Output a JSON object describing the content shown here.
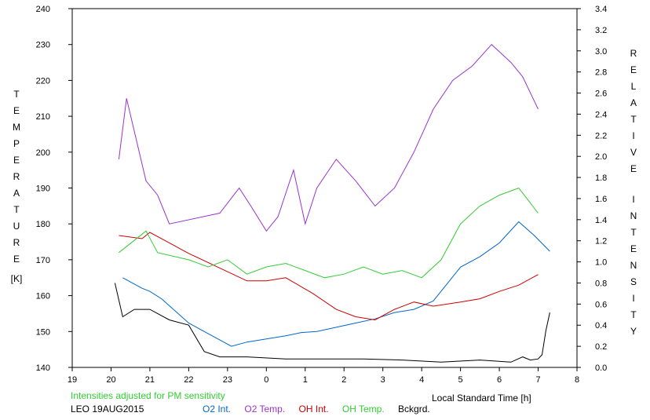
{
  "chart_data": {
    "type": "line",
    "note": "Intensities adjusted for PM sensitivity",
    "site_date": "LEO 19AUG2015",
    "xlabel": "Local Standard Time [h]",
    "ylabel_left": "TEMPERATURE",
    "ylabel_left_unit": "[K]",
    "ylabel_right": "RELATIVE INTENSITY",
    "x_ticks": [
      "19",
      "20",
      "21",
      "22",
      "23",
      "0",
      "1",
      "2",
      "3",
      "4",
      "5",
      "6",
      "7",
      "8"
    ],
    "x_range": [
      19,
      32
    ],
    "y_left_ticks": [
      140,
      150,
      160,
      170,
      180,
      190,
      200,
      210,
      220,
      230,
      240
    ],
    "y_left_range": [
      140,
      240
    ],
    "y_right_ticks": [
      "0.0",
      "0.2",
      "0.4",
      "0.6",
      "0.8",
      "1.0",
      "1.2",
      "1.4",
      "1.6",
      "1.8",
      "2.0",
      "2.2",
      "2.4",
      "2.6",
      "2.8",
      "3.0",
      "3.2",
      "3.4"
    ],
    "y_right_range": [
      0.0,
      3.4
    ],
    "grid": false,
    "legend_position": "bottom",
    "series": [
      {
        "name": "O2 Int.",
        "axis": "right",
        "color": "#0066cc",
        "x": [
          20.3,
          20.8,
          21.0,
          21.3,
          22.0,
          23.1,
          23.5,
          24.0,
          24.5,
          24.9,
          25.3,
          25.8,
          26.3,
          26.8,
          27.3,
          27.8,
          28.3,
          29.0,
          29.5,
          30.0,
          30.5,
          30.9,
          31.3
        ],
        "y": [
          0.85,
          0.75,
          0.72,
          0.65,
          0.42,
          0.2,
          0.24,
          0.27,
          0.3,
          0.33,
          0.34,
          0.38,
          0.42,
          0.46,
          0.52,
          0.55,
          0.63,
          0.95,
          1.05,
          1.18,
          1.38,
          1.25,
          1.1
        ]
      },
      {
        "name": "O2 Temp.",
        "axis": "left",
        "color": "#9933cc",
        "x": [
          20.2,
          20.4,
          20.9,
          21.2,
          21.5,
          22.8,
          23.3,
          23.6,
          24.0,
          24.3,
          24.7,
          25.0,
          25.3,
          25.8,
          26.3,
          26.8,
          27.3,
          27.8,
          28.3,
          28.8,
          29.3,
          29.8,
          30.3,
          30.6,
          31.0
        ],
        "y": [
          198,
          215,
          192,
          188,
          180,
          183,
          190,
          185,
          178,
          182,
          195,
          180,
          190,
          198,
          192,
          185,
          190,
          200,
          212,
          220,
          224,
          230,
          225,
          221,
          212
        ]
      },
      {
        "name": "OH Int.",
        "axis": "right",
        "color": "#cc0000",
        "x": [
          20.2,
          20.8,
          21.0,
          21.4,
          22.0,
          23.5,
          24.0,
          24.5,
          25.2,
          25.8,
          26.3,
          26.8,
          27.3,
          27.8,
          28.3,
          29.0,
          29.5,
          30.0,
          30.5,
          31.0
        ],
        "y": [
          1.25,
          1.22,
          1.28,
          1.2,
          1.08,
          0.82,
          0.82,
          0.85,
          0.7,
          0.55,
          0.48,
          0.45,
          0.55,
          0.62,
          0.58,
          0.62,
          0.65,
          0.72,
          0.78,
          0.88
        ]
      },
      {
        "name": "OH Temp.",
        "axis": "left",
        "color": "#33cc33",
        "x": [
          20.2,
          20.9,
          21.2,
          22.0,
          22.5,
          23.0,
          23.5,
          24.0,
          24.5,
          25.0,
          25.5,
          26.0,
          26.5,
          27.0,
          27.5,
          28.0,
          28.5,
          29.0,
          29.5,
          30.0,
          30.5,
          31.0
        ],
        "y": [
          172,
          178,
          172,
          170,
          168,
          170,
          166,
          168,
          169,
          167,
          165,
          166,
          168,
          166,
          167,
          165,
          170,
          180,
          185,
          188,
          190,
          183
        ]
      },
      {
        "name": "Bckgrd.",
        "axis": "right",
        "color": "#000000",
        "x": [
          20.1,
          20.3,
          20.6,
          21.0,
          21.5,
          22.0,
          22.4,
          22.8,
          23.5,
          24.5,
          25.5,
          26.5,
          27.5,
          28.5,
          29.5,
          30.3,
          30.6,
          30.8,
          31.0,
          31.1,
          31.2,
          31.3
        ],
        "y": [
          0.8,
          0.48,
          0.55,
          0.55,
          0.45,
          0.4,
          0.15,
          0.1,
          0.1,
          0.08,
          0.08,
          0.08,
          0.07,
          0.05,
          0.07,
          0.05,
          0.1,
          0.07,
          0.08,
          0.12,
          0.35,
          0.52
        ]
      }
    ]
  }
}
